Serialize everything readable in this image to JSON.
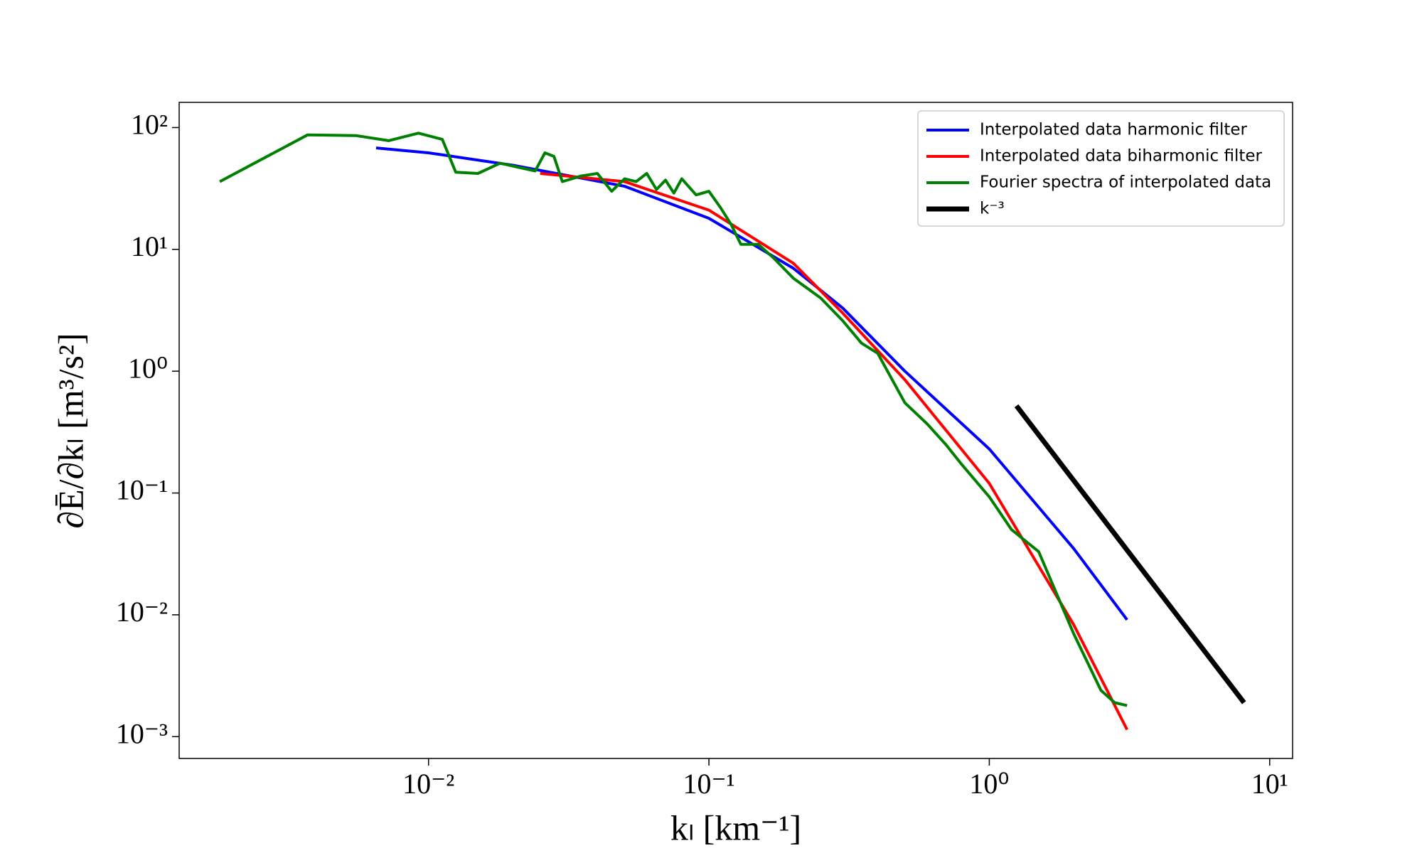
{
  "chart_data": {
    "type": "line",
    "xlabel": "kₗ [km⁻¹]",
    "ylabel": "∂Ē/∂kₗ [m³/s²]",
    "xscale": "log",
    "yscale": "log",
    "xlim": [
      0.00129,
      12.07
    ],
    "ylim": [
      0.000662,
      161
    ],
    "xticks": [
      {
        "value": 0.01,
        "label": "10⁻²"
      },
      {
        "value": 0.1,
        "label": "10⁻¹"
      },
      {
        "value": 1,
        "label": "10⁰"
      },
      {
        "value": 10,
        "label": "10¹"
      }
    ],
    "yticks": [
      {
        "value": 0.001,
        "label": "10⁻³"
      },
      {
        "value": 0.01,
        "label": "10⁻²"
      },
      {
        "value": 0.1,
        "label": "10⁻¹"
      },
      {
        "value": 1,
        "label": "10⁰"
      },
      {
        "value": 10,
        "label": "10¹"
      },
      {
        "value": 100,
        "label": "10²"
      }
    ],
    "legend": "upper right",
    "series": [
      {
        "name": "Interpolated data harmonic filter",
        "color": "#0000ff",
        "width": 4,
        "x": [
          0.0065,
          0.01,
          0.02,
          0.05,
          0.1,
          0.2,
          0.3,
          0.5,
          1.0,
          2.0,
          3.1
        ],
        "values": [
          68,
          62,
          49,
          33,
          18,
          7,
          3.3,
          1.0,
          0.23,
          0.035,
          0.0091
        ]
      },
      {
        "name": "Interpolated data biharmonic filter",
        "color": "#ff0000",
        "width": 4,
        "x": [
          0.025,
          0.05,
          0.1,
          0.2,
          0.3,
          0.5,
          1.0,
          2.0,
          3.1
        ],
        "values": [
          42,
          36,
          21,
          7.7,
          3.0,
          0.85,
          0.12,
          0.0083,
          0.00114
        ]
      },
      {
        "name": "Fourier spectra of interpolated data",
        "color": "#008000",
        "width": 4,
        "x": [
          0.0018,
          0.0037,
          0.0055,
          0.0072,
          0.0092,
          0.0112,
          0.0125,
          0.015,
          0.018,
          0.021,
          0.024,
          0.026,
          0.028,
          0.03,
          0.035,
          0.04,
          0.045,
          0.05,
          0.055,
          0.06,
          0.065,
          0.07,
          0.075,
          0.08,
          0.09,
          0.1,
          0.11,
          0.12,
          0.13,
          0.15,
          0.17,
          0.2,
          0.25,
          0.3,
          0.35,
          0.4,
          0.5,
          0.6,
          0.7,
          0.8,
          1.0,
          1.2,
          1.5,
          2.0,
          2.5,
          2.8,
          3.1
        ],
        "values": [
          36,
          87,
          86,
          78,
          90,
          80,
          43,
          42,
          51,
          47,
          44,
          62,
          58,
          36,
          40,
          42,
          30,
          38,
          36,
          42,
          31,
          37,
          29,
          38,
          28,
          30,
          22,
          16,
          11,
          11,
          8.5,
          5.8,
          4.0,
          2.6,
          1.7,
          1.4,
          0.55,
          0.37,
          0.25,
          0.17,
          0.093,
          0.05,
          0.033,
          0.007,
          0.0024,
          0.0019,
          0.0018
        ]
      },
      {
        "name": "k⁻³",
        "color": "#000000",
        "width": 7,
        "x": [
          1.25,
          8.1
        ],
        "values": [
          0.52,
          0.0019
        ]
      }
    ]
  }
}
